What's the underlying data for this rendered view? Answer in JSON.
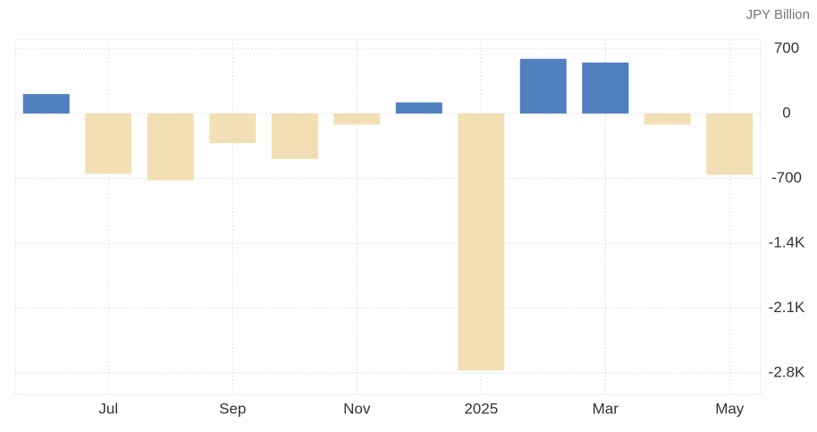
{
  "chart_data": {
    "type": "bar",
    "unit_label": "JPY Billion",
    "categories": [
      null,
      "Jul",
      null,
      "Sep",
      null,
      "Nov",
      null,
      "2025",
      null,
      "Mar",
      null,
      "May"
    ],
    "values": [
      210,
      -650,
      -720,
      -320,
      -490,
      -120,
      120,
      -2770,
      590,
      550,
      -120,
      -660
    ],
    "positive_color": "#4f7fbf",
    "negative_color": "#f3dfb4",
    "ylim": [
      -3030,
      800
    ],
    "yticks": [
      700,
      0,
      -700,
      {
        "value": -1400,
        "label": "-1.4K"
      },
      {
        "value": -2100,
        "label": "-2.1K"
      },
      {
        "value": -2800,
        "label": "-2.8K"
      }
    ],
    "grid": true
  }
}
